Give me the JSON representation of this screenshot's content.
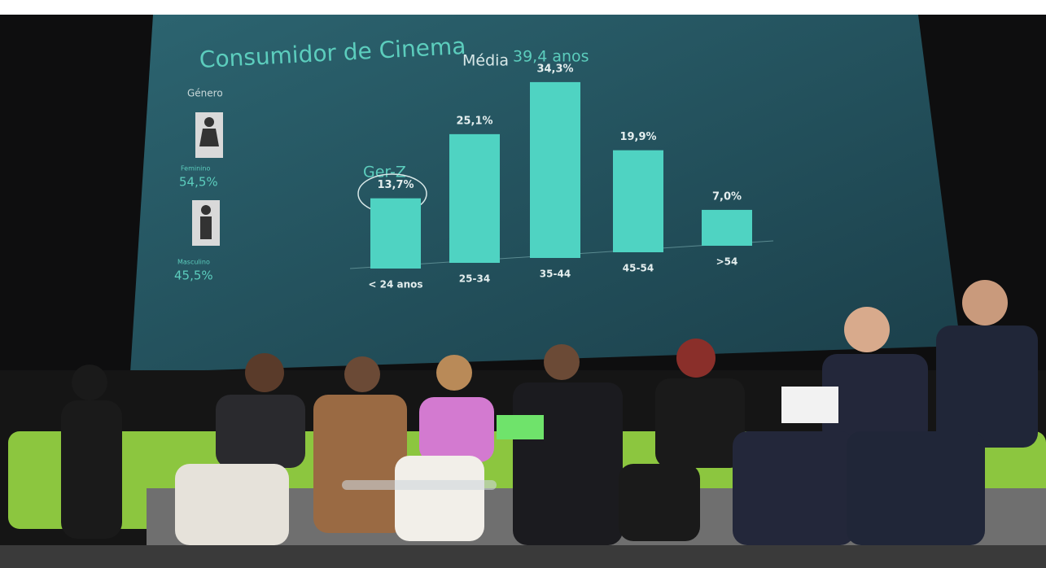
{
  "slide": {
    "title": "Consumidor de Cinema",
    "average_label": "Média",
    "average_value": "39,4 anos",
    "gender_label": "Género",
    "female_label": "Feminino",
    "female_value": 54.5,
    "female_value_label": "54,5%",
    "male_label": "Masculino",
    "male_value": 45.5,
    "male_value_label": "45,5%",
    "callout": "Ger-Z"
  },
  "chart_data": {
    "type": "bar",
    "categories": [
      "< 24 anos",
      "25-34",
      "35-44",
      "45-54",
      ">54"
    ],
    "values": [
      13.7,
      25.1,
      34.3,
      19.9,
      7.0
    ],
    "value_labels": [
      "13,7%",
      "25,1%",
      "34,3%",
      "19,9%",
      "7,0%"
    ],
    "color": "#4fd3c2"
  }
}
